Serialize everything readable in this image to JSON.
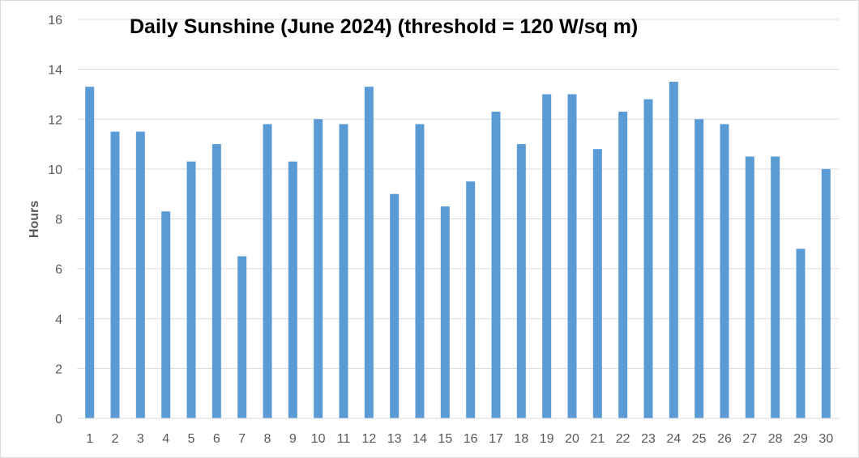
{
  "chart_data": {
    "type": "bar",
    "title": "Daily Sunshine (June 2024) (threshold = 120 W/sq m)",
    "xlabel": "",
    "ylabel": "Hours",
    "ylim": [
      0,
      16
    ],
    "y_ticks": [
      "0",
      "2",
      "4",
      "6",
      "8",
      "10",
      "12",
      "14",
      "16"
    ],
    "grid": "horizontal",
    "legend": "none",
    "bar_color": "#5b9bd5",
    "categories": [
      "1",
      "2",
      "3",
      "4",
      "5",
      "6",
      "7",
      "8",
      "9",
      "10",
      "11",
      "12",
      "13",
      "14",
      "15",
      "16",
      "17",
      "18",
      "19",
      "20",
      "21",
      "22",
      "23",
      "24",
      "25",
      "26",
      "27",
      "28",
      "29",
      "30"
    ],
    "series": [
      {
        "values": [
          13.3,
          11.5,
          11.5,
          8.3,
          10.3,
          11.0,
          6.5,
          11.8,
          10.3,
          12.0,
          11.8,
          13.3,
          9.0,
          11.8,
          8.5,
          9.5,
          12.3,
          11.0,
          13.0,
          13.0,
          10.8,
          12.3,
          12.8,
          13.5,
          12.0,
          11.8,
          10.5,
          10.5,
          6.8,
          10.0
        ]
      }
    ]
  }
}
